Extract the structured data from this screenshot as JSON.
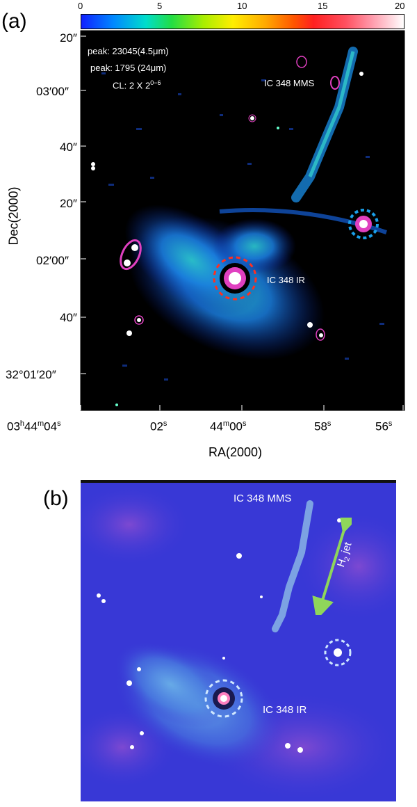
{
  "panel_a": {
    "label": "(a)",
    "colorbar": {
      "ticks": [
        "0",
        "5",
        "10",
        "15",
        "20"
      ]
    },
    "annotations": {
      "peak1": "peak: 23045(4.5μm)",
      "peak2": "peak: 1795 (24μm)",
      "cl": "CL: 2 X 2",
      "cl_sup": "0−6",
      "mms": "IC 348 MMS",
      "ir": "IC 348 IR"
    },
    "y_axis": {
      "title": "Dec(2000)",
      "ticks": [
        "20″",
        "03′00″",
        "40″",
        "20″",
        "02′00″",
        "40″",
        "32°01′20″"
      ]
    },
    "x_axis": {
      "title": "RA(2000)",
      "ticks": [
        {
          "main": "03",
          "h": "h",
          "mid": "44",
          "m": "m",
          "sec": "04",
          "s": "s"
        },
        {
          "main": "02",
          "s": "s"
        },
        {
          "main": "44",
          "m": "m",
          "sec": "00",
          "s": "s"
        },
        {
          "main": "58",
          "s": "s"
        },
        {
          "main": "56",
          "s": "s"
        }
      ]
    }
  },
  "panel_b": {
    "label": "(b)",
    "annotations": {
      "mms": "IC 348 MMS",
      "ir": "IC 348 IR",
      "jet": "H",
      "jet_sub": "2",
      "jet_suffix": " jet"
    }
  },
  "colors": {
    "accent_arrow": "#8fd65a",
    "contour": "#e040c0",
    "panel_a_bg": "#000000",
    "panel_b_bg": "#3a3ad8"
  }
}
